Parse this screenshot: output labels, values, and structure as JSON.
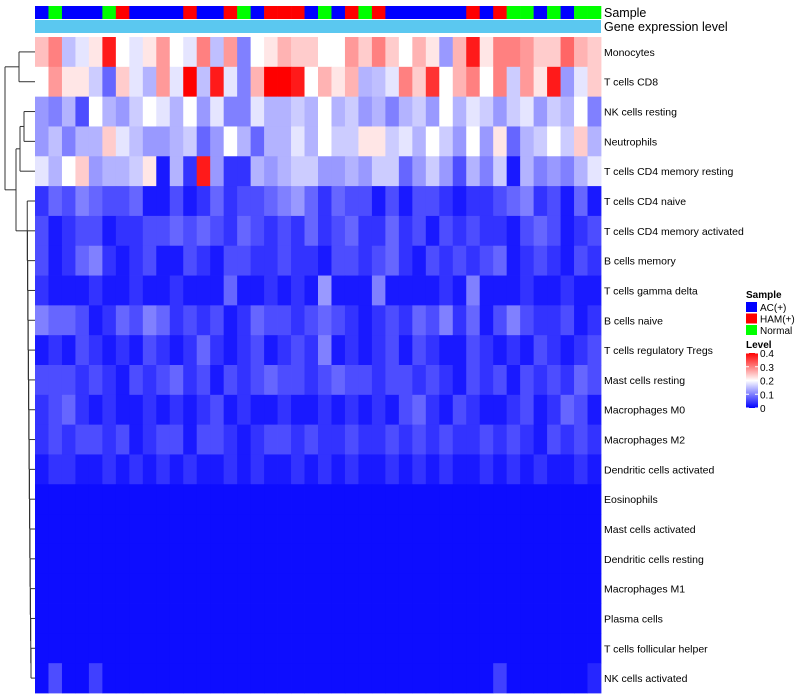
{
  "chart_data": {
    "type": "heatmap",
    "title": "",
    "annotation_labels": {
      "sample": "Sample",
      "expression": "Gene expression level"
    },
    "rows": [
      "Monocytes",
      "T cells CD8",
      "NK cells resting",
      "Neutrophils",
      "T cells CD4 memory resting",
      "T cells CD4 naive",
      "T cells CD4 memory activated",
      "B cells memory",
      "T cells gamma delta",
      "B cells naive",
      "T cells regulatory  Tregs",
      "Mast cells resting",
      "Macrophages M0",
      "Macrophages M2",
      "Dendritic cells activated",
      "Eosinophils",
      "Mast cells activated",
      "Dendritic cells resting",
      "Macrophages M1",
      "Plasma cells",
      "T cells follicular helper",
      "NK cells activated"
    ],
    "samples": [
      "AC(+)",
      "Normal",
      "AC(+)",
      "AC(+)",
      "AC(+)",
      "Normal",
      "HAM(+)",
      "AC(+)",
      "AC(+)",
      "AC(+)",
      "AC(+)",
      "HAM(+)",
      "AC(+)",
      "AC(+)",
      "HAM(+)",
      "Normal",
      "AC(+)",
      "HAM(+)",
      "HAM(+)",
      "HAM(+)",
      "AC(+)",
      "Normal",
      "AC(+)",
      "HAM(+)",
      "Normal",
      "HAM(+)",
      "AC(+)",
      "AC(+)",
      "AC(+)",
      "AC(+)",
      "AC(+)",
      "AC(+)",
      "HAM(+)",
      "AC(+)",
      "HAM(+)",
      "Normal",
      "Normal",
      "AC(+)",
      "Normal",
      "AC(+)",
      "Normal",
      "Normal"
    ],
    "values": [
      [
        0.25,
        0.3,
        0.15,
        0.18,
        0.22,
        0.38,
        0.2,
        0.18,
        0.22,
        0.28,
        0.2,
        0.18,
        0.3,
        0.15,
        0.28,
        0.1,
        0.2,
        0.22,
        0.26,
        0.24,
        0.24,
        0.2,
        0.2,
        0.28,
        0.24,
        0.3,
        0.24,
        0.2,
        0.26,
        0.22,
        0.12,
        0.26,
        0.38,
        0.22,
        0.3,
        0.3,
        0.28,
        0.24,
        0.24,
        0.32,
        0.26,
        0.24
      ],
      [
        0.2,
        0.28,
        0.22,
        0.22,
        0.16,
        0.08,
        0.24,
        0.18,
        0.14,
        0.28,
        0.18,
        0.4,
        0.15,
        0.38,
        0.18,
        0.1,
        0.26,
        0.4,
        0.4,
        0.38,
        0.2,
        0.26,
        0.22,
        0.26,
        0.14,
        0.15,
        0.18,
        0.3,
        0.24,
        0.36,
        0.2,
        0.26,
        0.3,
        0.2,
        0.3,
        0.16,
        0.28,
        0.22,
        0.38,
        0.12,
        0.18,
        0.24
      ],
      [
        0.12,
        0.1,
        0.14,
        0.06,
        0.2,
        0.14,
        0.12,
        0.16,
        0.2,
        0.18,
        0.14,
        0.2,
        0.12,
        0.18,
        0.1,
        0.1,
        0.18,
        0.14,
        0.14,
        0.16,
        0.14,
        0.2,
        0.14,
        0.16,
        0.12,
        0.14,
        0.1,
        0.14,
        0.16,
        0.12,
        0.2,
        0.14,
        0.18,
        0.16,
        0.12,
        0.16,
        0.18,
        0.12,
        0.16,
        0.14,
        0.2,
        0.1
      ],
      [
        0.12,
        0.15,
        0.1,
        0.14,
        0.14,
        0.24,
        0.18,
        0.15,
        0.12,
        0.12,
        0.14,
        0.16,
        0.08,
        0.12,
        0.2,
        0.14,
        0.08,
        0.14,
        0.14,
        0.18,
        0.14,
        0.2,
        0.16,
        0.16,
        0.22,
        0.22,
        0.16,
        0.18,
        0.14,
        0.2,
        0.16,
        0.12,
        0.2,
        0.12,
        0.22,
        0.08,
        0.14,
        0.16,
        0.2,
        0.16,
        0.24,
        0.14
      ],
      [
        0.18,
        0.14,
        0.2,
        0.24,
        0.12,
        0.14,
        0.14,
        0.16,
        0.22,
        0.02,
        0.14,
        0.04,
        0.38,
        0.12,
        0.04,
        0.04,
        0.14,
        0.12,
        0.14,
        0.16,
        0.16,
        0.12,
        0.12,
        0.14,
        0.12,
        0.16,
        0.16,
        0.08,
        0.12,
        0.16,
        0.12,
        0.06,
        0.14,
        0.1,
        0.16,
        0.02,
        0.14,
        0.1,
        0.12,
        0.1,
        0.14,
        0.18
      ],
      [
        0.04,
        0.08,
        0.06,
        0.1,
        0.08,
        0.06,
        0.06,
        0.08,
        0.02,
        0.02,
        0.06,
        0.02,
        0.04,
        0.08,
        0.04,
        0.06,
        0.06,
        0.08,
        0.1,
        0.12,
        0.08,
        0.04,
        0.08,
        0.06,
        0.06,
        0.02,
        0.06,
        0.02,
        0.06,
        0.06,
        0.04,
        0.02,
        0.04,
        0.04,
        0.06,
        0.08,
        0.1,
        0.04,
        0.06,
        0.02,
        0.08,
        0.02
      ],
      [
        0.06,
        0.02,
        0.04,
        0.06,
        0.06,
        0.02,
        0.04,
        0.04,
        0.06,
        0.06,
        0.08,
        0.06,
        0.08,
        0.06,
        0.04,
        0.08,
        0.06,
        0.04,
        0.06,
        0.04,
        0.08,
        0.04,
        0.06,
        0.08,
        0.04,
        0.04,
        0.08,
        0.04,
        0.06,
        0.02,
        0.06,
        0.04,
        0.06,
        0.04,
        0.04,
        0.02,
        0.06,
        0.08,
        0.06,
        0.02,
        0.04,
        0.06
      ],
      [
        0.06,
        0.02,
        0.04,
        0.08,
        0.1,
        0.04,
        0.02,
        0.04,
        0.06,
        0.02,
        0.02,
        0.06,
        0.04,
        0.02,
        0.06,
        0.06,
        0.04,
        0.04,
        0.06,
        0.04,
        0.04,
        0.02,
        0.06,
        0.06,
        0.04,
        0.06,
        0.08,
        0.04,
        0.02,
        0.06,
        0.04,
        0.06,
        0.04,
        0.06,
        0.08,
        0.02,
        0.04,
        0.06,
        0.04,
        0.02,
        0.06,
        0.04
      ],
      [
        0.04,
        0.02,
        0.02,
        0.02,
        0.04,
        0.02,
        0.02,
        0.04,
        0.02,
        0.02,
        0.04,
        0.02,
        0.02,
        0.02,
        0.08,
        0.02,
        0.02,
        0.04,
        0.02,
        0.04,
        0.02,
        0.12,
        0.02,
        0.02,
        0.02,
        0.1,
        0.02,
        0.02,
        0.02,
        0.02,
        0.04,
        0.02,
        0.1,
        0.02,
        0.02,
        0.02,
        0.04,
        0.02,
        0.02,
        0.04,
        0.02,
        0.02
      ],
      [
        0.1,
        0.08,
        0.08,
        0.06,
        0.02,
        0.04,
        0.08,
        0.06,
        0.1,
        0.08,
        0.04,
        0.06,
        0.04,
        0.06,
        0.02,
        0.04,
        0.08,
        0.06,
        0.06,
        0.04,
        0.06,
        0.08,
        0.06,
        0.04,
        0.02,
        0.04,
        0.06,
        0.04,
        0.08,
        0.06,
        0.1,
        0.04,
        0.08,
        0.02,
        0.06,
        0.1,
        0.06,
        0.04,
        0.04,
        0.06,
        0.02,
        0.04
      ],
      [
        0.02,
        0.04,
        0.02,
        0.06,
        0.04,
        0.02,
        0.04,
        0.02,
        0.06,
        0.04,
        0.02,
        0.04,
        0.08,
        0.04,
        0.02,
        0.04,
        0.06,
        0.02,
        0.04,
        0.06,
        0.04,
        0.1,
        0.02,
        0.04,
        0.02,
        0.04,
        0.06,
        0.02,
        0.06,
        0.04,
        0.02,
        0.02,
        0.06,
        0.04,
        0.02,
        0.04,
        0.02,
        0.06,
        0.04,
        0.02,
        0.04,
        0.06
      ],
      [
        0.06,
        0.06,
        0.06,
        0.04,
        0.06,
        0.04,
        0.02,
        0.06,
        0.04,
        0.06,
        0.08,
        0.04,
        0.06,
        0.02,
        0.06,
        0.04,
        0.06,
        0.08,
        0.06,
        0.06,
        0.04,
        0.06,
        0.08,
        0.06,
        0.06,
        0.04,
        0.06,
        0.06,
        0.04,
        0.06,
        0.04,
        0.02,
        0.06,
        0.04,
        0.06,
        0.02,
        0.06,
        0.04,
        0.06,
        0.04,
        0.08,
        0.06
      ],
      [
        0.04,
        0.06,
        0.08,
        0.04,
        0.02,
        0.04,
        0.02,
        0.02,
        0.04,
        0.02,
        0.04,
        0.02,
        0.04,
        0.06,
        0.02,
        0.04,
        0.02,
        0.02,
        0.04,
        0.02,
        0.02,
        0.04,
        0.02,
        0.04,
        0.02,
        0.04,
        0.02,
        0.06,
        0.08,
        0.04,
        0.02,
        0.06,
        0.04,
        0.02,
        0.02,
        0.04,
        0.06,
        0.02,
        0.04,
        0.08,
        0.06,
        0.02
      ],
      [
        0.04,
        0.06,
        0.04,
        0.06,
        0.06,
        0.04,
        0.06,
        0.02,
        0.04,
        0.06,
        0.06,
        0.02,
        0.06,
        0.06,
        0.04,
        0.02,
        0.04,
        0.06,
        0.06,
        0.04,
        0.06,
        0.04,
        0.04,
        0.06,
        0.04,
        0.04,
        0.06,
        0.04,
        0.06,
        0.04,
        0.06,
        0.04,
        0.04,
        0.06,
        0.04,
        0.06,
        0.04,
        0.02,
        0.06,
        0.04,
        0.06,
        0.04
      ],
      [
        0.02,
        0.04,
        0.04,
        0.02,
        0.02,
        0.04,
        0.02,
        0.04,
        0.02,
        0.04,
        0.02,
        0.04,
        0.02,
        0.02,
        0.04,
        0.02,
        0.04,
        0.02,
        0.02,
        0.04,
        0.02,
        0.04,
        0.02,
        0.04,
        0.02,
        0.02,
        0.04,
        0.02,
        0.04,
        0.02,
        0.04,
        0.02,
        0.02,
        0.04,
        0.02,
        0.04,
        0.02,
        0.04,
        0.02,
        0.02,
        0.04,
        0.02
      ],
      [
        0.01,
        0.01,
        0.01,
        0.01,
        0.01,
        0.01,
        0.01,
        0.01,
        0.01,
        0.01,
        0.01,
        0.01,
        0.01,
        0.01,
        0.01,
        0.01,
        0.01,
        0.01,
        0.01,
        0.01,
        0.01,
        0.01,
        0.01,
        0.01,
        0.01,
        0.01,
        0.01,
        0.01,
        0.01,
        0.01,
        0.01,
        0.01,
        0.01,
        0.01,
        0.01,
        0.01,
        0.01,
        0.01,
        0.01,
        0.01,
        0.01,
        0.01
      ],
      [
        0.01,
        0.01,
        0.01,
        0.01,
        0.01,
        0.01,
        0.01,
        0.01,
        0.01,
        0.01,
        0.01,
        0.01,
        0.01,
        0.01,
        0.01,
        0.01,
        0.01,
        0.01,
        0.01,
        0.01,
        0.01,
        0.01,
        0.01,
        0.01,
        0.01,
        0.01,
        0.01,
        0.01,
        0.01,
        0.01,
        0.01,
        0.01,
        0.01,
        0.01,
        0.01,
        0.01,
        0.01,
        0.01,
        0.01,
        0.01,
        0.01,
        0.01
      ],
      [
        0.01,
        0.01,
        0.01,
        0.01,
        0.01,
        0.01,
        0.01,
        0.01,
        0.01,
        0.01,
        0.01,
        0.01,
        0.01,
        0.01,
        0.01,
        0.01,
        0.01,
        0.01,
        0.01,
        0.01,
        0.01,
        0.01,
        0.01,
        0.01,
        0.01,
        0.01,
        0.01,
        0.01,
        0.01,
        0.01,
        0.01,
        0.01,
        0.01,
        0.01,
        0.01,
        0.01,
        0.01,
        0.01,
        0.01,
        0.01,
        0.01,
        0.01
      ],
      [
        0.01,
        0.01,
        0.01,
        0.01,
        0.01,
        0.01,
        0.01,
        0.01,
        0.01,
        0.01,
        0.01,
        0.01,
        0.01,
        0.01,
        0.01,
        0.01,
        0.01,
        0.01,
        0.01,
        0.01,
        0.01,
        0.01,
        0.01,
        0.01,
        0.01,
        0.01,
        0.01,
        0.01,
        0.01,
        0.01,
        0.01,
        0.01,
        0.01,
        0.01,
        0.01,
        0.01,
        0.01,
        0.01,
        0.01,
        0.01,
        0.01,
        0.01
      ],
      [
        0.01,
        0.01,
        0.01,
        0.01,
        0.01,
        0.01,
        0.01,
        0.01,
        0.01,
        0.01,
        0.01,
        0.01,
        0.01,
        0.01,
        0.01,
        0.01,
        0.01,
        0.01,
        0.01,
        0.01,
        0.01,
        0.01,
        0.01,
        0.01,
        0.01,
        0.01,
        0.01,
        0.01,
        0.01,
        0.01,
        0.01,
        0.01,
        0.01,
        0.01,
        0.01,
        0.01,
        0.01,
        0.01,
        0.01,
        0.01,
        0.01,
        0.01
      ],
      [
        0.01,
        0.01,
        0.01,
        0.01,
        0.01,
        0.01,
        0.01,
        0.01,
        0.01,
        0.01,
        0.01,
        0.01,
        0.01,
        0.01,
        0.01,
        0.01,
        0.01,
        0.01,
        0.01,
        0.01,
        0.01,
        0.01,
        0.01,
        0.01,
        0.01,
        0.01,
        0.01,
        0.01,
        0.01,
        0.01,
        0.01,
        0.01,
        0.01,
        0.01,
        0.01,
        0.01,
        0.01,
        0.01,
        0.01,
        0.01,
        0.01,
        0.01
      ],
      [
        0.01,
        0.06,
        0.01,
        0.01,
        0.05,
        0.01,
        0.01,
        0.01,
        0.01,
        0.01,
        0.01,
        0.01,
        0.01,
        0.01,
        0.01,
        0.01,
        0.01,
        0.01,
        0.01,
        0.01,
        0.01,
        0.01,
        0.01,
        0.01,
        0.01,
        0.01,
        0.01,
        0.01,
        0.01,
        0.01,
        0.01,
        0.01,
        0.01,
        0.01,
        0.05,
        0.01,
        0.01,
        0.01,
        0.01,
        0.01,
        0.01,
        0.03
      ]
    ],
    "colorscale": {
      "low": "#0000ff",
      "mid": "#ffffff",
      "high": "#ff0000",
      "min": 0,
      "max": 0.4,
      "midpoint": 0.2
    },
    "legend": {
      "sample_title": "Sample",
      "sample_items": [
        {
          "label": "AC(+)",
          "color": "#0000ff"
        },
        {
          "label": "HAM(+)",
          "color": "#ff0000"
        },
        {
          "label": "Normal",
          "color": "#00ff00"
        }
      ],
      "level_title": "Level",
      "level_ticks": [
        "0.4",
        "0.3",
        "0.2",
        "0.1",
        "0"
      ],
      "position": "right"
    },
    "expression_bar_color": "#5bc8f0"
  }
}
